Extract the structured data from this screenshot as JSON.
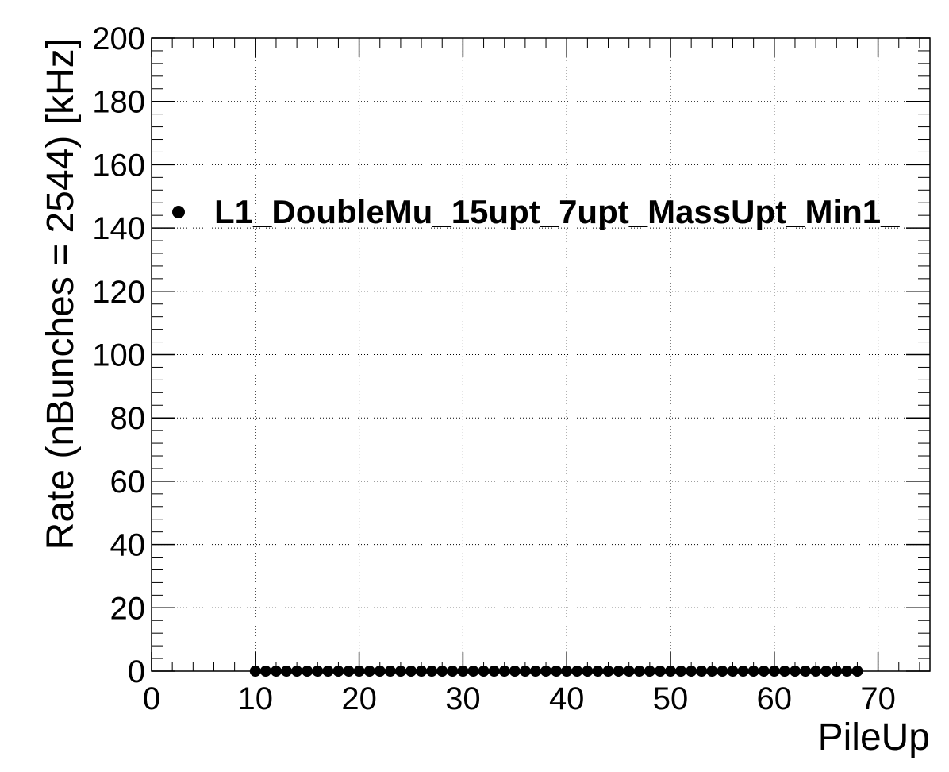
{
  "chart_data": {
    "type": "scatter",
    "xlabel": "PileUp",
    "ylabel": "Rate (nBunches = 2544) [kHz]",
    "xlim": [
      0,
      75
    ],
    "ylim": [
      0,
      200
    ],
    "x_ticks": [
      "0",
      "10",
      "20",
      "30",
      "40",
      "50",
      "60",
      "70"
    ],
    "y_ticks": [
      "0",
      "20",
      "40",
      "60",
      "80",
      "100",
      "120",
      "140",
      "160",
      "180",
      "200"
    ],
    "grid": true,
    "legend_position": "top-left",
    "series": [
      {
        "name": "L1_DoubleMu_15upt_7upt_MassUpt_Min1_",
        "marker": "filled-circle",
        "color": "#000000",
        "x": [
          10,
          11,
          12,
          13,
          14,
          15,
          16,
          17,
          18,
          19,
          20,
          21,
          22,
          23,
          24,
          25,
          26,
          27,
          28,
          29,
          30,
          31,
          32,
          33,
          34,
          35,
          36,
          37,
          38,
          39,
          40,
          41,
          42,
          43,
          44,
          45,
          46,
          47,
          48,
          49,
          50,
          51,
          52,
          53,
          54,
          55,
          56,
          57,
          58,
          59,
          60,
          61,
          62,
          63,
          64,
          65,
          66,
          67,
          68
        ],
        "y": [
          0,
          0,
          0,
          0,
          0,
          0,
          0,
          0,
          0,
          0,
          0,
          0,
          0,
          0,
          0,
          0,
          0,
          0,
          0,
          0,
          0,
          0,
          0,
          0,
          0,
          0,
          0,
          0,
          0,
          0,
          0,
          0,
          0,
          0,
          0,
          0,
          0,
          0,
          0,
          0,
          0,
          0,
          0,
          0,
          0,
          0,
          0,
          0,
          0,
          0,
          0,
          0,
          0,
          0,
          0,
          0,
          0,
          0,
          0
        ]
      }
    ]
  }
}
